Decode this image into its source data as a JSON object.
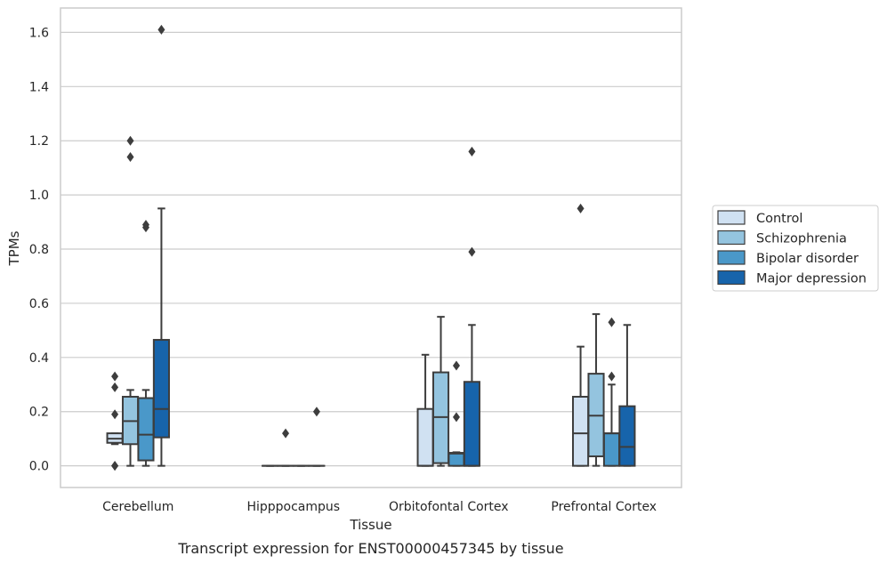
{
  "chart_data": {
    "type": "box",
    "xlabel": "Tissue",
    "ylabel": "TPMs",
    "caption": "Transcript expression for ENST00000457345 by tissue",
    "ylim": [
      -0.08,
      1.69
    ],
    "yticks": [
      0.0,
      0.2,
      0.4,
      0.6,
      0.8,
      1.0,
      1.2,
      1.4,
      1.6
    ],
    "ytick_labels": [
      "0.0",
      "0.2",
      "0.4",
      "0.6",
      "0.8",
      "1.0",
      "1.2",
      "1.4",
      "1.6"
    ],
    "categories": [
      "Cerebellum",
      "Hipppocampus",
      "Orbitofontal Cortex",
      "Prefrontal Cortex"
    ],
    "grid": "horizontal",
    "legend_position": "right-center",
    "series": [
      {
        "name": "Control",
        "color": "#d0e1f2",
        "boxes": [
          {
            "whislo": 0.08,
            "q1": 0.085,
            "med": 0.1,
            "q3": 0.12,
            "whishi": 0.12,
            "fliers": [
              0.33,
              0.29,
              0.19,
              0.0,
              0.0
            ]
          },
          {
            "whislo": 0.0,
            "q1": 0.0,
            "med": 0.0,
            "q3": 0.0,
            "whishi": 0.0,
            "fliers": []
          },
          {
            "whislo": 0.0,
            "q1": 0.0,
            "med": 0.0,
            "q3": 0.21,
            "whishi": 0.41,
            "fliers": []
          },
          {
            "whislo": 0.0,
            "q1": 0.0,
            "med": 0.12,
            "q3": 0.255,
            "whishi": 0.44,
            "fliers": [
              0.95
            ]
          }
        ]
      },
      {
        "name": "Schizophrenia",
        "color": "#94c4df",
        "boxes": [
          {
            "whislo": 0.0,
            "q1": 0.08,
            "med": 0.165,
            "q3": 0.255,
            "whishi": 0.28,
            "fliers": [
              1.2,
              1.14
            ]
          },
          {
            "whislo": 0.0,
            "q1": 0.0,
            "med": 0.0,
            "q3": 0.0,
            "whishi": 0.0,
            "fliers": [
              0.12
            ]
          },
          {
            "whislo": 0.0,
            "q1": 0.01,
            "med": 0.18,
            "q3": 0.345,
            "whishi": 0.55,
            "fliers": []
          },
          {
            "whislo": 0.0,
            "q1": 0.035,
            "med": 0.185,
            "q3": 0.34,
            "whishi": 0.56,
            "fliers": []
          }
        ]
      },
      {
        "name": "Bipolar disorder",
        "color": "#4a98c9",
        "boxes": [
          {
            "whislo": 0.0,
            "q1": 0.02,
            "med": 0.115,
            "q3": 0.25,
            "whishi": 0.28,
            "fliers": [
              0.89,
              0.88
            ]
          },
          {
            "whislo": 0.0,
            "q1": 0.0,
            "med": 0.0,
            "q3": 0.0,
            "whishi": 0.0,
            "fliers": []
          },
          {
            "whislo": 0.0,
            "q1": 0.0,
            "med": 0.045,
            "q3": 0.048,
            "whishi": 0.05,
            "fliers": [
              0.37,
              0.18
            ]
          },
          {
            "whislo": 0.0,
            "q1": 0.0,
            "med": 0.12,
            "q3": 0.12,
            "whishi": 0.3,
            "fliers": [
              0.53,
              0.33
            ]
          }
        ]
      },
      {
        "name": "Major depression",
        "color": "#1764ab",
        "boxes": [
          {
            "whislo": 0.0,
            "q1": 0.105,
            "med": 0.21,
            "q3": 0.465,
            "whishi": 0.95,
            "fliers": [
              1.61
            ]
          },
          {
            "whislo": 0.0,
            "q1": 0.0,
            "med": 0.0,
            "q3": 0.0,
            "whishi": 0.0,
            "fliers": [
              0.2
            ]
          },
          {
            "whislo": 0.0,
            "q1": 0.0,
            "med": 0.0,
            "q3": 0.31,
            "whishi": 0.52,
            "fliers": [
              1.16,
              0.79
            ]
          },
          {
            "whislo": 0.0,
            "q1": 0.0,
            "med": 0.07,
            "q3": 0.22,
            "whishi": 0.52,
            "fliers": []
          }
        ]
      }
    ]
  }
}
